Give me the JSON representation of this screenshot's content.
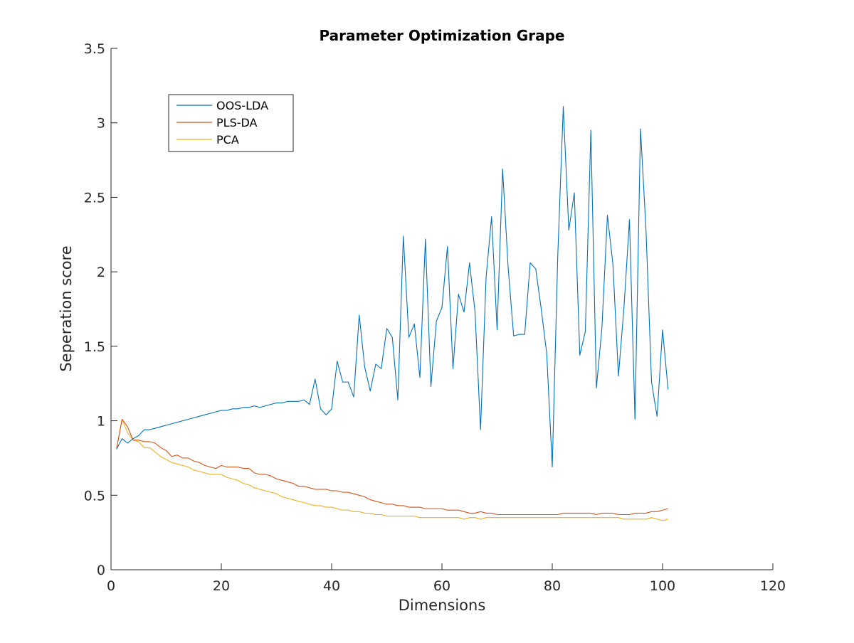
{
  "chart_data": {
    "type": "line",
    "title": "Parameter Optimization Grape",
    "xlabel": "Dimensions",
    "ylabel": "Seperation score",
    "xlim": [
      0,
      120
    ],
    "ylim": [
      0,
      3.5
    ],
    "xticks": [
      0,
      20,
      40,
      60,
      80,
      100,
      120
    ],
    "xtick_labels": [
      "0",
      "20",
      "40",
      "60",
      "80",
      "100",
      "120"
    ],
    "yticks": [
      0,
      0.5,
      1,
      1.5,
      2,
      2.5,
      3,
      3.5
    ],
    "ytick_labels": [
      "0",
      "0.5",
      "1",
      "1.5",
      "2",
      "2.5",
      "3",
      "3.5"
    ],
    "grid": false,
    "legend_position": "top-left",
    "x_start": 1,
    "x_step": 1,
    "series": [
      {
        "name": "OOS-LDA",
        "color": "#0072BD",
        "values": [
          0.81,
          0.88,
          0.85,
          0.88,
          0.9,
          0.94,
          0.94,
          0.95,
          0.96,
          0.97,
          0.98,
          0.99,
          1.0,
          1.01,
          1.02,
          1.03,
          1.04,
          1.05,
          1.06,
          1.07,
          1.07,
          1.08,
          1.08,
          1.09,
          1.09,
          1.1,
          1.09,
          1.1,
          1.11,
          1.12,
          1.12,
          1.13,
          1.13,
          1.13,
          1.14,
          1.11,
          1.28,
          1.08,
          1.04,
          1.08,
          1.4,
          1.26,
          1.26,
          1.16,
          1.71,
          1.36,
          1.2,
          1.38,
          1.35,
          1.62,
          1.56,
          1.14,
          2.24,
          1.56,
          1.65,
          1.29,
          2.22,
          1.23,
          1.67,
          1.76,
          2.17,
          1.35,
          1.85,
          1.73,
          2.06,
          1.73,
          0.94,
          1.96,
          2.37,
          1.61,
          2.69,
          2.03,
          1.57,
          1.58,
          1.58,
          2.06,
          2.02,
          1.75,
          1.45,
          0.69,
          2.11,
          3.11,
          2.28,
          2.53,
          1.44,
          1.6,
          2.95,
          1.22,
          1.62,
          2.38,
          2.05,
          1.3,
          1.76,
          2.35,
          1.01,
          2.96,
          2.28,
          1.26,
          1.03,
          1.61,
          1.21
        ]
      },
      {
        "name": "PLS-DA",
        "color": "#D95319",
        "values": [
          0.81,
          1.01,
          0.96,
          0.87,
          0.87,
          0.86,
          0.86,
          0.85,
          0.82,
          0.8,
          0.76,
          0.77,
          0.75,
          0.75,
          0.73,
          0.72,
          0.7,
          0.69,
          0.68,
          0.7,
          0.69,
          0.69,
          0.69,
          0.68,
          0.68,
          0.65,
          0.64,
          0.64,
          0.63,
          0.61,
          0.6,
          0.59,
          0.58,
          0.56,
          0.56,
          0.55,
          0.54,
          0.54,
          0.54,
          0.53,
          0.53,
          0.52,
          0.52,
          0.51,
          0.5,
          0.49,
          0.47,
          0.46,
          0.45,
          0.44,
          0.44,
          0.43,
          0.43,
          0.42,
          0.42,
          0.42,
          0.41,
          0.41,
          0.41,
          0.41,
          0.4,
          0.4,
          0.4,
          0.39,
          0.38,
          0.38,
          0.39,
          0.38,
          0.38,
          0.37,
          0.37,
          0.37,
          0.37,
          0.37,
          0.37,
          0.37,
          0.37,
          0.37,
          0.37,
          0.37,
          0.37,
          0.38,
          0.38,
          0.38,
          0.38,
          0.38,
          0.38,
          0.37,
          0.38,
          0.38,
          0.38,
          0.37,
          0.37,
          0.37,
          0.38,
          0.38,
          0.38,
          0.39,
          0.39,
          0.4,
          0.41
        ]
      },
      {
        "name": "PCA",
        "color": "#EDB120",
        "values": [
          0.81,
          1.01,
          0.92,
          0.87,
          0.86,
          0.82,
          0.82,
          0.79,
          0.76,
          0.74,
          0.72,
          0.71,
          0.7,
          0.69,
          0.67,
          0.66,
          0.65,
          0.64,
          0.64,
          0.64,
          0.62,
          0.61,
          0.6,
          0.58,
          0.57,
          0.55,
          0.54,
          0.53,
          0.52,
          0.51,
          0.49,
          0.48,
          0.47,
          0.46,
          0.45,
          0.44,
          0.43,
          0.43,
          0.42,
          0.42,
          0.41,
          0.4,
          0.4,
          0.39,
          0.39,
          0.38,
          0.38,
          0.37,
          0.37,
          0.36,
          0.36,
          0.36,
          0.36,
          0.36,
          0.36,
          0.35,
          0.35,
          0.35,
          0.35,
          0.35,
          0.35,
          0.35,
          0.35,
          0.34,
          0.35,
          0.35,
          0.34,
          0.35,
          0.35,
          0.35,
          0.35,
          0.35,
          0.35,
          0.35,
          0.35,
          0.35,
          0.35,
          0.35,
          0.35,
          0.35,
          0.35,
          0.35,
          0.35,
          0.35,
          0.35,
          0.35,
          0.35,
          0.35,
          0.35,
          0.35,
          0.35,
          0.35,
          0.34,
          0.34,
          0.34,
          0.34,
          0.34,
          0.35,
          0.34,
          0.33,
          0.34
        ]
      }
    ]
  }
}
